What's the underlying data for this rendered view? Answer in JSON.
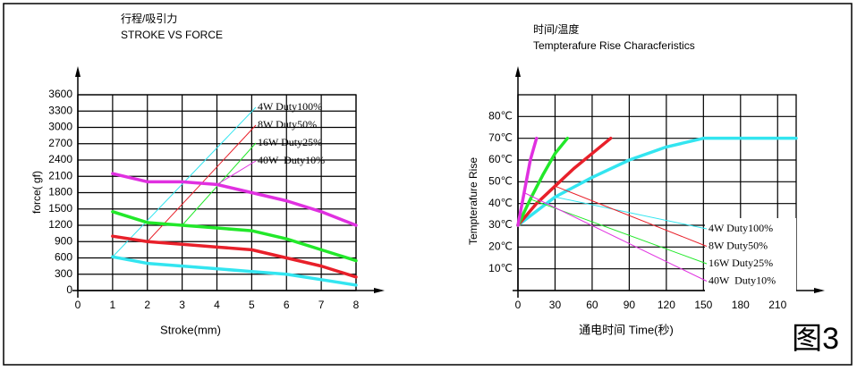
{
  "figure_label": "图3",
  "chart_data": [
    {
      "type": "line",
      "title": "行程/吸引力",
      "subtitle": "STROKE VS FORCE",
      "x_label": "Stroke(mm)",
      "y_label": "force( gf)",
      "xlim": [
        0,
        8
      ],
      "xticks": [
        0,
        1,
        2,
        3,
        4,
        5,
        6,
        7,
        8
      ],
      "ylim": [
        0,
        3600
      ],
      "yticks": [
        0,
        300,
        600,
        900,
        1200,
        1500,
        1800,
        2100,
        2400,
        2700,
        3000,
        3300,
        3600
      ],
      "grid": true,
      "x": [
        1,
        2,
        3,
        4,
        5,
        6,
        7,
        8
      ],
      "series": [
        {
          "name": "4W Duty100%",
          "color": "#33e5f0",
          "values": [
            620,
            500,
            450,
            400,
            350,
            300,
            200,
            100
          ]
        },
        {
          "name": "8W Duty50%",
          "color": "#e8202a",
          "values": [
            1000,
            900,
            850,
            800,
            750,
            600,
            450,
            250
          ]
        },
        {
          "name": "16W Duty25%",
          "color": "#22e82a",
          "values": [
            1450,
            1250,
            1200,
            1150,
            1100,
            950,
            750,
            550
          ]
        },
        {
          "name": "40W  Duty10%",
          "color": "#e030e0",
          "values": [
            2150,
            2000,
            2000,
            1950,
            1800,
            1650,
            1450,
            1200
          ]
        }
      ]
    },
    {
      "type": "line",
      "title": "时间/温度",
      "subtitle": "Tempterafure Rise Characferistics",
      "x_label": "通电时间  Time(秒)",
      "y_label": "Tempterafure Rise",
      "xlim": [
        0,
        225
      ],
      "xticks": [
        0,
        30,
        60,
        90,
        120,
        150,
        180,
        210
      ],
      "ylim": [
        0,
        90
      ],
      "yticks": [
        {
          "value": 10,
          "label": "10℃"
        },
        {
          "value": 20,
          "label": "20℃"
        },
        {
          "value": 30,
          "label": "30℃"
        },
        {
          "value": 40,
          "label": "40℃"
        },
        {
          "value": 50,
          "label": "50℃"
        },
        {
          "value": 60,
          "label": "60℃"
        },
        {
          "value": 70,
          "label": "70℃"
        },
        {
          "value": 80,
          "label": "80℃"
        }
      ],
      "grid": true,
      "series": [
        {
          "name": "4W Duty100%",
          "color": "#33e5f0",
          "x": [
            0,
            30,
            60,
            90,
            120,
            150,
            180,
            210,
            225
          ],
          "values": [
            30,
            43,
            52,
            60,
            66,
            70,
            70,
            70,
            70
          ]
        },
        {
          "name": "8W Duty50%",
          "color": "#e8202a",
          "x": [
            0,
            15,
            30,
            45,
            60,
            75
          ],
          "values": [
            30,
            40,
            48,
            56,
            63,
            70
          ]
        },
        {
          "name": "16W Duty25%",
          "color": "#22e82a",
          "x": [
            0,
            10,
            20,
            30,
            40
          ],
          "values": [
            30,
            42,
            53,
            63,
            70
          ]
        },
        {
          "name": "40W  Duty10%",
          "color": "#e030e0",
          "x": [
            0,
            5,
            10,
            15
          ],
          "values": [
            30,
            45,
            60,
            70
          ]
        }
      ]
    }
  ]
}
